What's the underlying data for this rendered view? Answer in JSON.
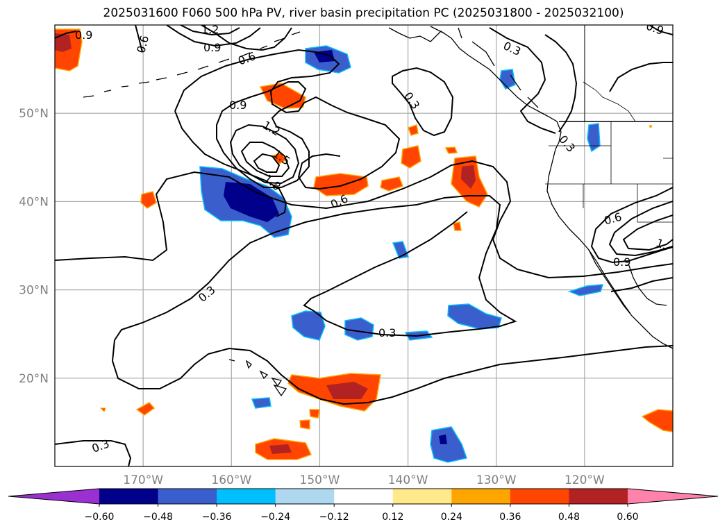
{
  "title": "2025031600 F060 500 hPa PV, river basin precipitation PC (2025031800 - 2025032100)",
  "map": {
    "lon_range": [
      -180,
      -110
    ],
    "lat_range": [
      10,
      60
    ],
    "lon_ticks": [
      {
        "value": -170,
        "label": "170°W"
      },
      {
        "value": -160,
        "label": "160°W"
      },
      {
        "value": -150,
        "label": "150°W"
      },
      {
        "value": -140,
        "label": "140°W"
      },
      {
        "value": -130,
        "label": "130°W"
      },
      {
        "value": -120,
        "label": "120°W"
      }
    ],
    "lat_ticks": [
      {
        "value": 20,
        "label": "20°N"
      },
      {
        "value": 30,
        "label": "30°N"
      },
      {
        "value": 40,
        "label": "40°N"
      },
      {
        "value": 50,
        "label": "50°N"
      }
    ],
    "gridlines": true,
    "contour_labels": [
      "0.9",
      "1.2",
      "0.6",
      "0.9",
      "0.6",
      "0.3",
      "0.9",
      "1.2",
      "1.5",
      "1.8",
      "0.6",
      "0.3",
      "0.3",
      "0.6",
      "0.3",
      "0.3",
      "0.9",
      "1.",
      "0.9",
      "0.3"
    ]
  },
  "colorbar": {
    "tick_labels": [
      "−0.60",
      "−0.48",
      "−0.36",
      "−0.24",
      "−0.12",
      "0.12",
      "0.24",
      "0.36",
      "0.48",
      "0.60"
    ],
    "colors": [
      "#9b30d0",
      "#00008b",
      "#3a5fcd",
      "#00bfff",
      "#add8f0",
      "#ffffff",
      "#ffe98a",
      "#ffa500",
      "#ff4500",
      "#b22222",
      "#ff82ab"
    ]
  }
}
